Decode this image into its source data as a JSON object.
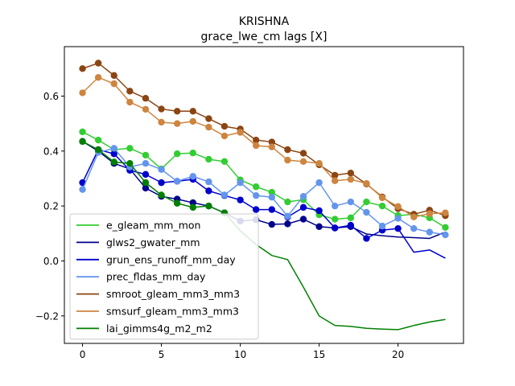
{
  "chart_data": {
    "type": "line",
    "title": "KRISHNA",
    "subtitle": "grace_lwe_cm lags [X]",
    "xlabel": "",
    "ylabel": "",
    "xlim": [
      -1.15,
      24.15
    ],
    "ylim": [
      -0.3,
      0.78
    ],
    "xticks": [
      0,
      5,
      10,
      15,
      20
    ],
    "yticks": [
      -0.2,
      0.0,
      0.2,
      0.4,
      0.6
    ],
    "ytick_labels": [
      "−0.2",
      "0.0",
      "0.2",
      "0.4",
      "0.6"
    ],
    "grid": false,
    "legend_position": "lower-left",
    "x": [
      0,
      1,
      2,
      3,
      4,
      5,
      6,
      7,
      8,
      9,
      10,
      11,
      12,
      13,
      14,
      15,
      16,
      17,
      18,
      19,
      20,
      21,
      22,
      23
    ],
    "series": [
      {
        "name": "e_gleam_mm_mon",
        "color": "#32cd32",
        "markers_until": 23,
        "values": [
          0.47,
          0.44,
          0.405,
          0.41,
          0.385,
          0.335,
          0.39,
          0.393,
          0.37,
          0.362,
          0.295,
          0.27,
          0.25,
          0.215,
          0.223,
          0.168,
          0.152,
          0.157,
          0.215,
          0.2,
          0.165,
          0.17,
          0.157,
          0.122
        ]
      },
      {
        "name": "glws2_gwater_mm",
        "color": "#00008b",
        "markers_until": 17,
        "values": [
          0.435,
          0.4,
          0.355,
          0.335,
          0.265,
          0.235,
          0.225,
          0.212,
          0.2,
          0.175,
          0.145,
          0.15,
          0.133,
          0.135,
          0.152,
          0.125,
          0.12,
          0.125,
          0.098,
          0.092,
          0.087,
          0.085,
          0.082,
          0.105
        ]
      },
      {
        "name": "grun_ens_runoff_mm_day",
        "color": "#0000cd",
        "markers_until": 20,
        "values": [
          0.285,
          0.405,
          0.39,
          0.33,
          0.315,
          0.285,
          0.29,
          0.297,
          0.255,
          0.238,
          0.222,
          0.187,
          0.187,
          0.16,
          0.195,
          0.183,
          0.12,
          0.13,
          0.082,
          0.112,
          0.118,
          0.032,
          0.04,
          0.01
        ]
      },
      {
        "name": "prec_fldas_mm_day",
        "color": "#6495ed",
        "markers_until": 23,
        "values": [
          0.26,
          0.395,
          0.41,
          0.342,
          0.355,
          0.333,
          0.29,
          0.308,
          0.288,
          0.24,
          0.285,
          0.238,
          0.232,
          0.163,
          0.235,
          0.285,
          0.2,
          0.215,
          0.177,
          0.127,
          0.155,
          0.118,
          0.105,
          0.095
        ]
      },
      {
        "name": "smroot_gleam_mm3_mm3",
        "color": "#8b4513",
        "markers_until": 23,
        "values": [
          0.7,
          0.72,
          0.675,
          0.618,
          0.592,
          0.553,
          0.545,
          0.545,
          0.518,
          0.49,
          0.48,
          0.44,
          0.433,
          0.405,
          0.392,
          0.35,
          0.312,
          0.32,
          0.28,
          0.233,
          0.19,
          0.17,
          0.185,
          0.165
        ]
      },
      {
        "name": "smsurf_gleam_mm3_mm3",
        "color": "#cd853f",
        "markers_until": 23,
        "values": [
          0.612,
          0.668,
          0.645,
          0.578,
          0.552,
          0.505,
          0.5,
          0.508,
          0.487,
          0.455,
          0.468,
          0.42,
          0.415,
          0.367,
          0.362,
          0.355,
          0.292,
          0.297,
          0.282,
          0.23,
          0.198,
          0.16,
          0.172,
          0.175
        ]
      },
      {
        "name": "lai_gimms4g_m2_m2",
        "color": "#008000",
        "markers_until": 9,
        "values": [
          0.435,
          0.405,
          0.36,
          0.355,
          0.285,
          0.24,
          0.21,
          0.195,
          0.2,
          0.175,
          0.11,
          0.06,
          0.02,
          0.005,
          -0.095,
          -0.2,
          -0.235,
          -0.238,
          -0.245,
          -0.248,
          -0.25,
          -0.235,
          -0.222,
          -0.213
        ]
      }
    ]
  }
}
